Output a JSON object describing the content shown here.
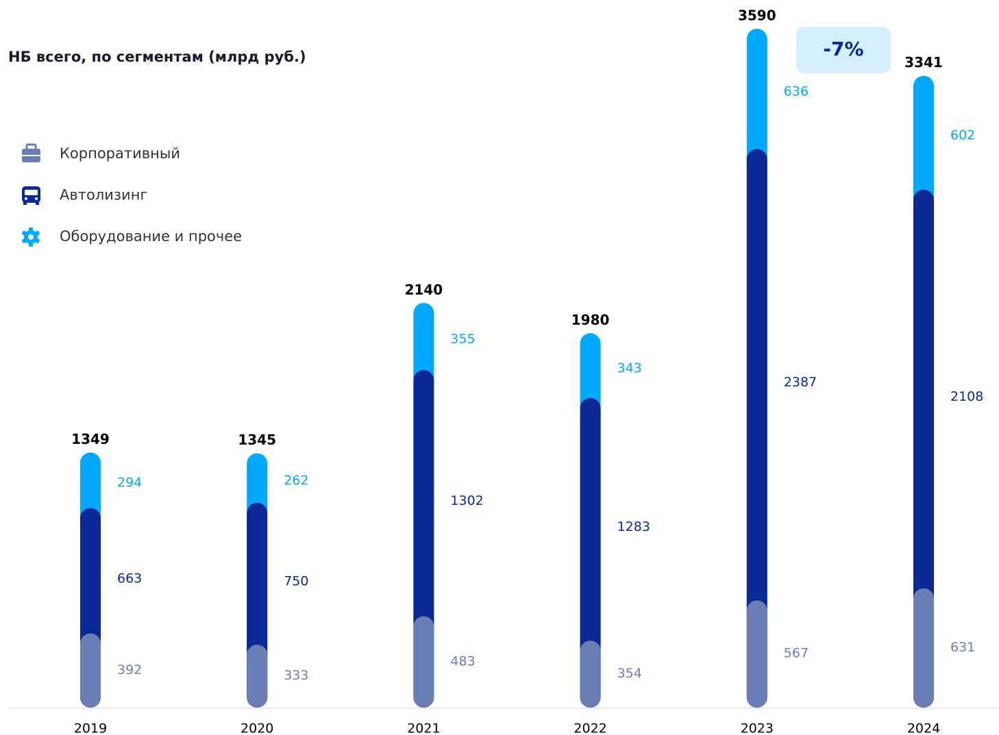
{
  "chart_data": {
    "type": "bar",
    "stacked": true,
    "title": "НБ всего, по сегментам (млрд руб.)",
    "annotation": "-7%",
    "categories": [
      "2019",
      "2020",
      "2021",
      "2022",
      "2023",
      "2024"
    ],
    "series": [
      {
        "name": "Корпоративный",
        "color": "#6a7db5",
        "values": [
          392,
          333,
          483,
          354,
          567,
          631
        ]
      },
      {
        "name": "Автолизинг",
        "color": "#0a2896",
        "values": [
          663,
          750,
          1302,
          1283,
          2387,
          2108
        ]
      },
      {
        "name": "Оборудование и прочее",
        "color": "#00a8ff",
        "values": [
          294,
          262,
          355,
          343,
          636,
          602
        ]
      }
    ],
    "totals": [
      1349,
      1345,
      2140,
      1980,
      3590,
      3341
    ]
  }
}
